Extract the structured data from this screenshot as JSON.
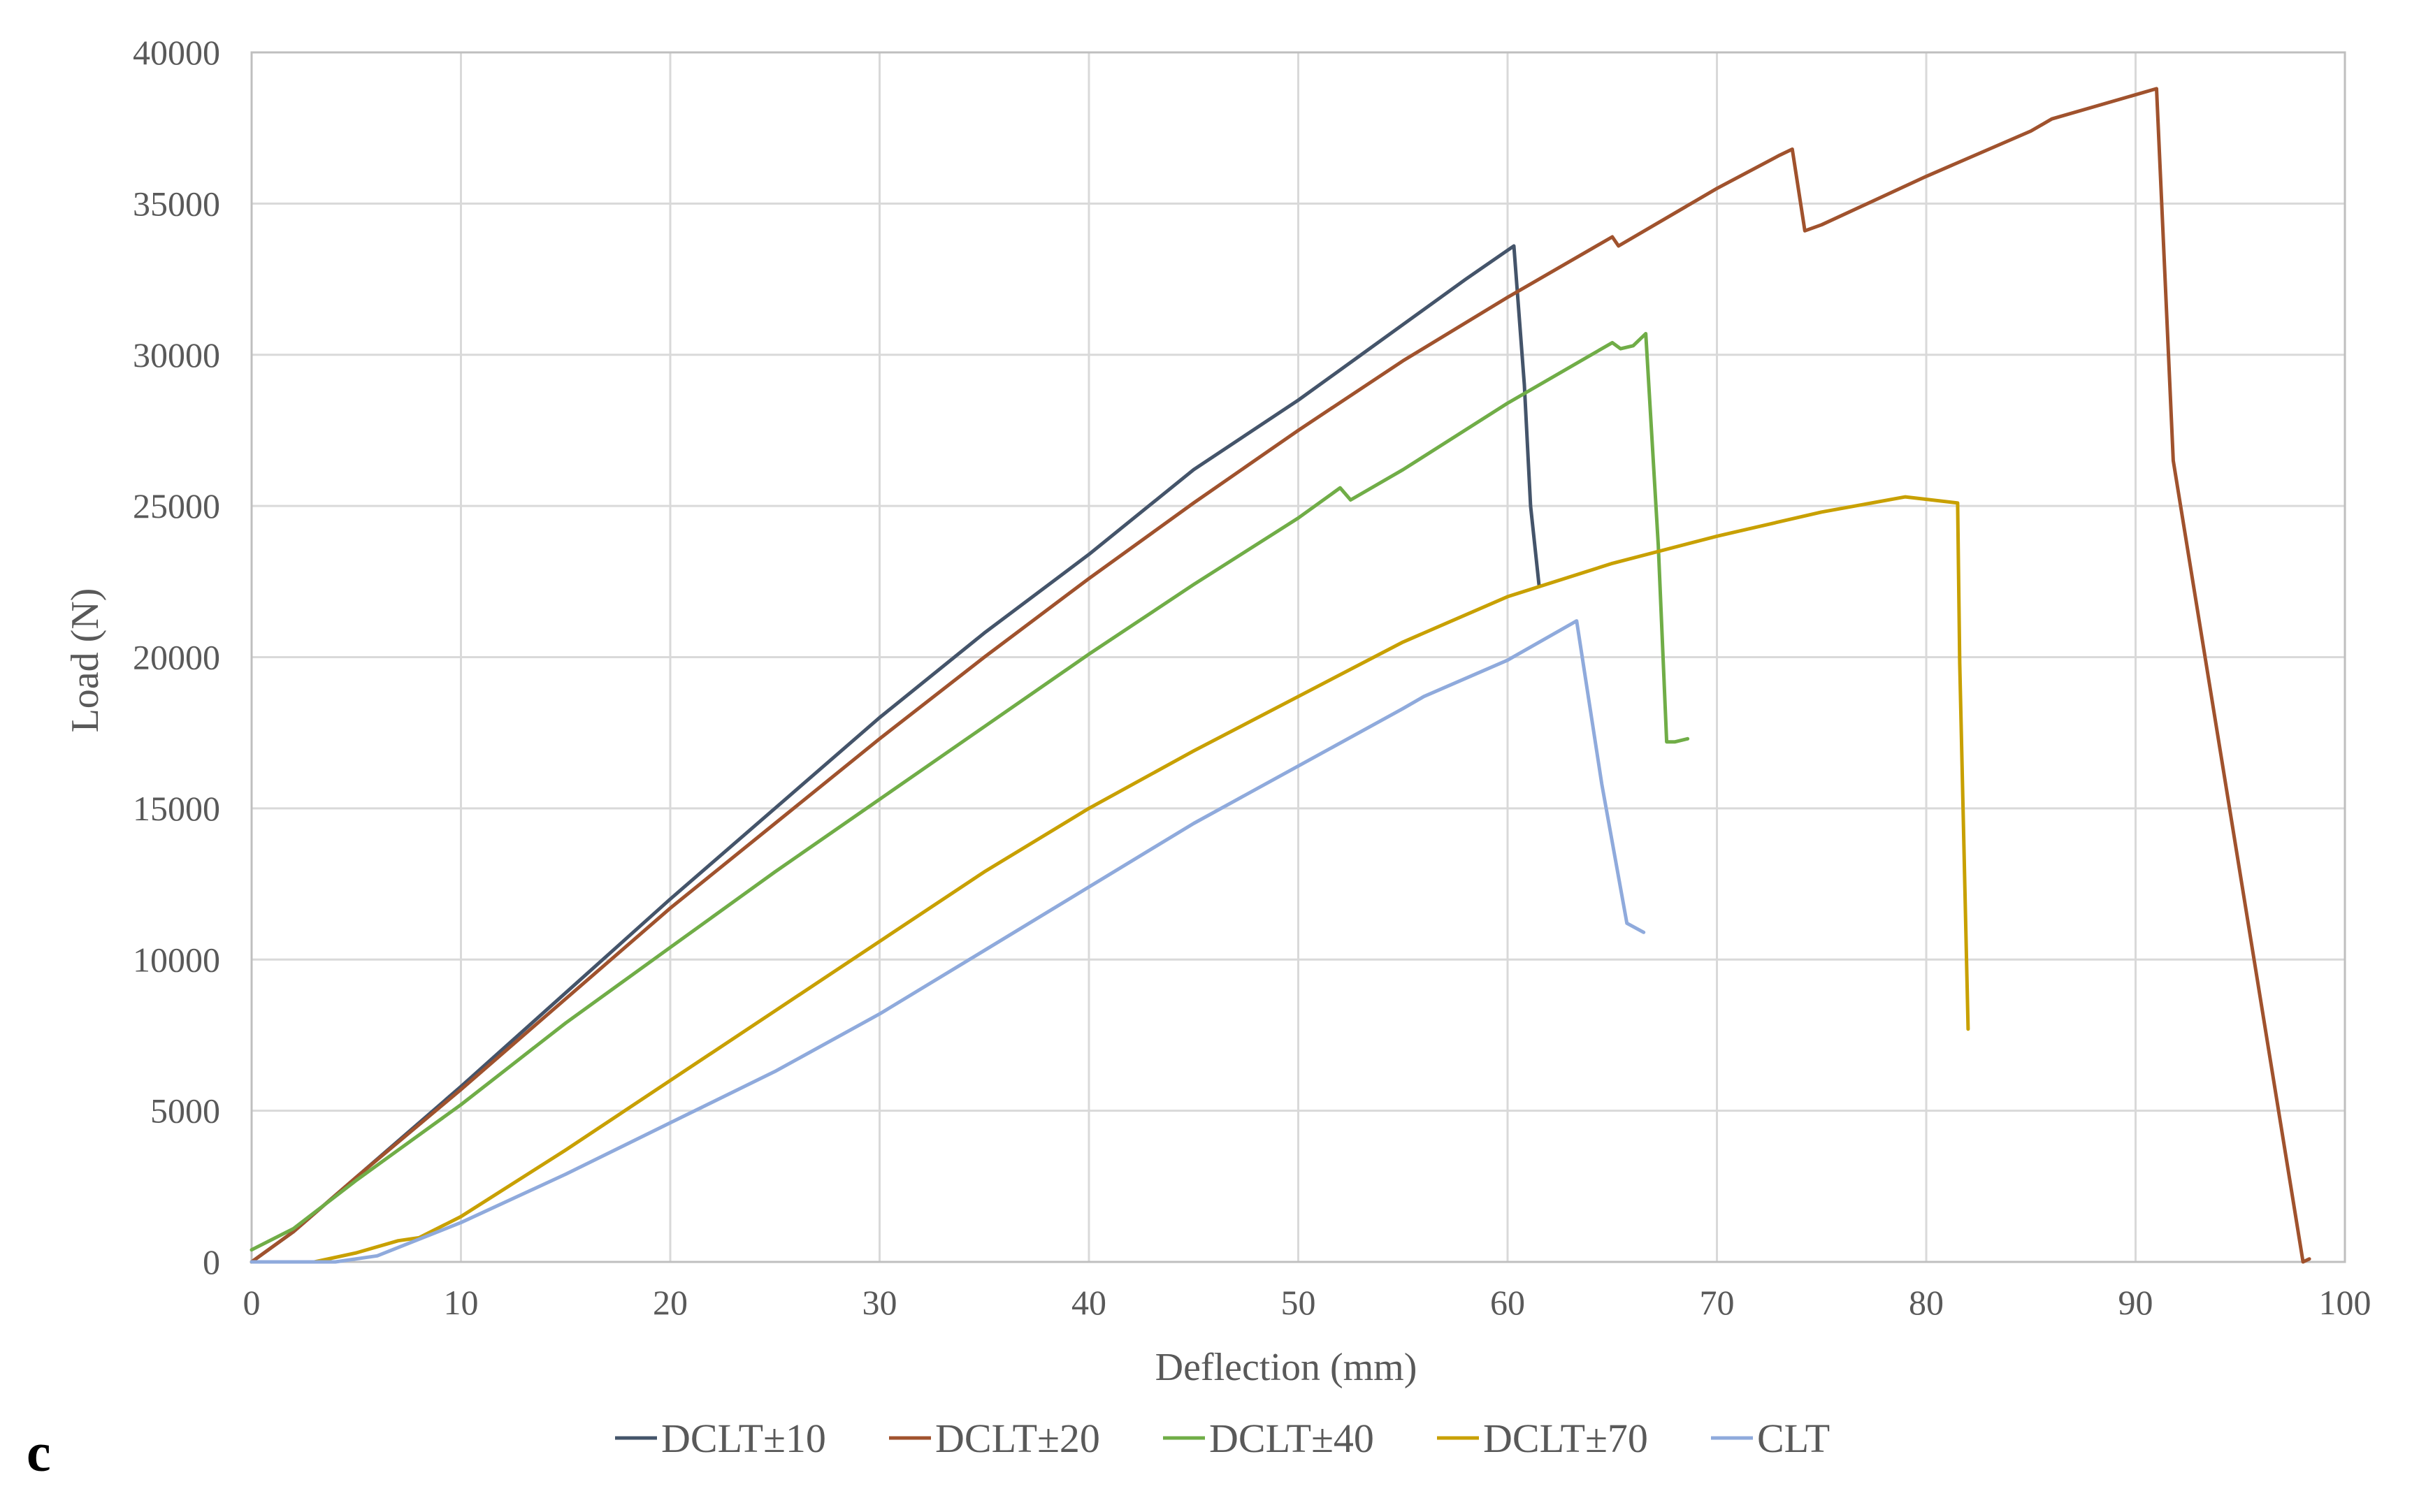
{
  "panel_label": "c",
  "chart_data": {
    "type": "line",
    "xlabel": "Deflection (mm)",
    "ylabel": "Load (N)",
    "xlim": [
      0,
      100
    ],
    "ylim": [
      0,
      40000
    ],
    "xticks": [
      0,
      10,
      20,
      30,
      40,
      50,
      60,
      70,
      80,
      90,
      100
    ],
    "yticks": [
      0,
      5000,
      10000,
      15000,
      20000,
      25000,
      30000,
      35000,
      40000
    ],
    "grid": true,
    "legend": "bottom",
    "series": [
      {
        "name": "DCLT±10",
        "color": "#44546A",
        "points": [
          [
            0,
            0
          ],
          [
            2,
            1000
          ],
          [
            5,
            2800
          ],
          [
            10,
            5800
          ],
          [
            15,
            8900
          ],
          [
            20,
            12000
          ],
          [
            25,
            15000
          ],
          [
            30,
            18000
          ],
          [
            35,
            20800
          ],
          [
            40,
            23400
          ],
          [
            45,
            26200
          ],
          [
            50,
            28500
          ],
          [
            53,
            30000
          ],
          [
            55,
            31000
          ],
          [
            58,
            32500
          ],
          [
            60.3,
            33600
          ],
          [
            60.8,
            29000
          ],
          [
            61.1,
            25000
          ],
          [
            61.5,
            22400
          ]
        ]
      },
      {
        "name": "DCLT±20",
        "color": "#A0522D",
        "points": [
          [
            0,
            0
          ],
          [
            2,
            1000
          ],
          [
            5,
            2800
          ],
          [
            10,
            5700
          ],
          [
            15,
            8700
          ],
          [
            20,
            11700
          ],
          [
            25,
            14500
          ],
          [
            30,
            17300
          ],
          [
            35,
            20000
          ],
          [
            40,
            22600
          ],
          [
            45,
            25100
          ],
          [
            50,
            27500
          ],
          [
            55,
            29800
          ],
          [
            60,
            31900
          ],
          [
            64,
            33500
          ],
          [
            65,
            33900
          ],
          [
            65.3,
            33600
          ],
          [
            70,
            35500
          ],
          [
            73,
            36600
          ],
          [
            73.6,
            36800
          ],
          [
            74.2,
            34100
          ],
          [
            75,
            34300
          ],
          [
            80,
            35900
          ],
          [
            85,
            37400
          ],
          [
            86,
            37800
          ],
          [
            88,
            38200
          ],
          [
            91,
            38800
          ],
          [
            91.8,
            26500
          ],
          [
            98,
            0
          ],
          [
            98.3,
            100
          ]
        ]
      },
      {
        "name": "DCLT±40",
        "color": "#70AD47",
        "points": [
          [
            0,
            400
          ],
          [
            2,
            1100
          ],
          [
            5,
            2700
          ],
          [
            10,
            5200
          ],
          [
            15,
            7900
          ],
          [
            20,
            10400
          ],
          [
            25,
            12900
          ],
          [
            30,
            15300
          ],
          [
            35,
            17700
          ],
          [
            40,
            20100
          ],
          [
            45,
            22400
          ],
          [
            50,
            24600
          ],
          [
            52,
            25600
          ],
          [
            52.5,
            25200
          ],
          [
            55,
            26200
          ],
          [
            60,
            28400
          ],
          [
            65,
            30400
          ],
          [
            65.4,
            30200
          ],
          [
            66,
            30300
          ],
          [
            66.6,
            30700
          ],
          [
            67.2,
            23700
          ],
          [
            67.6,
            17200
          ],
          [
            68,
            17200
          ],
          [
            68.6,
            17300
          ]
        ]
      },
      {
        "name": "DCLT±70",
        "color": "#C8A000",
        "points": [
          [
            0,
            0
          ],
          [
            3,
            0
          ],
          [
            5,
            300
          ],
          [
            7,
            700
          ],
          [
            8,
            800
          ],
          [
            10,
            1500
          ],
          [
            15,
            3700
          ],
          [
            20,
            6000
          ],
          [
            25,
            8300
          ],
          [
            30,
            10600
          ],
          [
            35,
            12900
          ],
          [
            40,
            15000
          ],
          [
            45,
            16900
          ],
          [
            50,
            18700
          ],
          [
            55,
            20500
          ],
          [
            60,
            22000
          ],
          [
            65,
            23100
          ],
          [
            70,
            24000
          ],
          [
            75,
            24800
          ],
          [
            79,
            25300
          ],
          [
            81.5,
            25100
          ],
          [
            81.6,
            19800
          ],
          [
            82,
            7700
          ]
        ]
      },
      {
        "name": "CLT",
        "color": "#8FAADC",
        "points": [
          [
            0,
            0
          ],
          [
            4,
            0
          ],
          [
            6,
            200
          ],
          [
            10,
            1300
          ],
          [
            15,
            2900
          ],
          [
            20,
            4600
          ],
          [
            25,
            6300
          ],
          [
            30,
            8200
          ],
          [
            35,
            10300
          ],
          [
            40,
            12400
          ],
          [
            45,
            14500
          ],
          [
            50,
            16400
          ],
          [
            55,
            18300
          ],
          [
            56,
            18700
          ],
          [
            60,
            19900
          ],
          [
            63.3,
            21200
          ],
          [
            64.5,
            15800
          ],
          [
            65.7,
            11200
          ],
          [
            66.5,
            10900
          ]
        ]
      }
    ]
  }
}
